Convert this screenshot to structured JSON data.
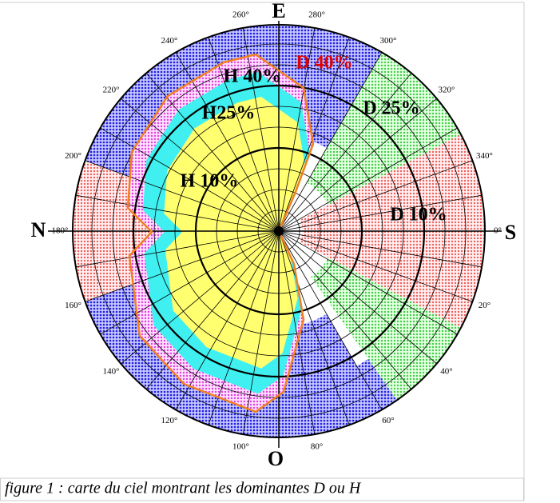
{
  "cardinals": {
    "east": "E",
    "west": "O",
    "north": "N",
    "south": "S"
  },
  "angle_labels": [
    "0°",
    "20°",
    "40°",
    "60°",
    "80°",
    "100°",
    "120°",
    "140°",
    "160°",
    "180°",
    "200°",
    "220°",
    "240°",
    "260°",
    "280°",
    "300°",
    "320°",
    "340°"
  ],
  "regions": [
    {
      "label": "H 40%"
    },
    {
      "label": "D 40%"
    },
    {
      "label": "H25%"
    },
    {
      "label": "D 25%"
    },
    {
      "label": "H 10%"
    },
    {
      "label": "D 10%"
    }
  ],
  "caption": "figure 1 : carte du ciel montrant les dominantes D ou H"
}
